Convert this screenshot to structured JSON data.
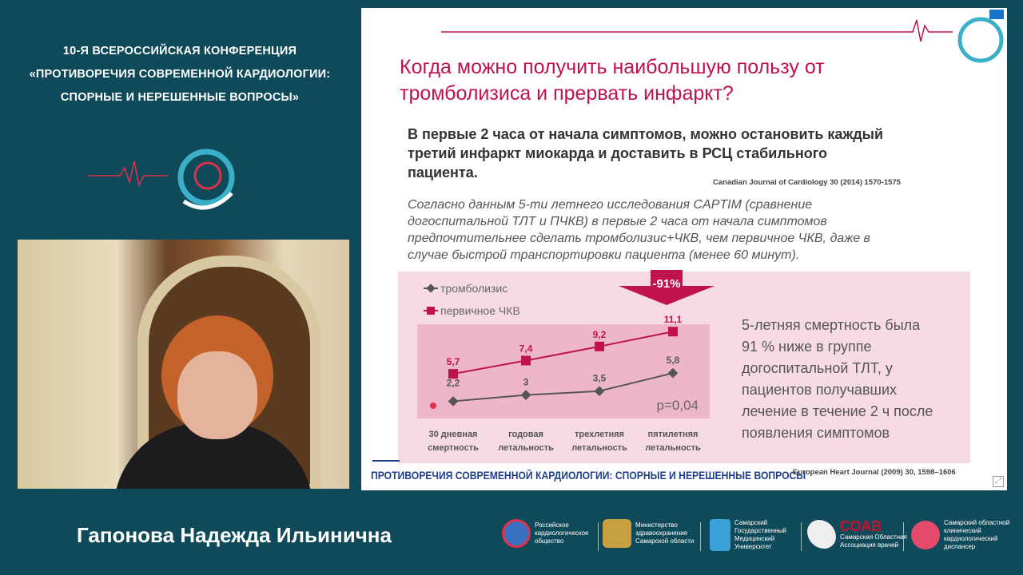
{
  "conference": {
    "line1": "10-Я ВСЕРОССИЙСКАЯ КОНФЕРЕНЦИЯ",
    "line2": "«ПРОТИВОРЕЧИЯ СОВРЕМЕННОЙ КАРДИОЛОГИИ:",
    "line3": "СПОРНЫЕ И НЕРЕШЕННЫЕ ВОПРОСЫ»"
  },
  "speaker": "Гапонова Надежда Ильинична",
  "slide": {
    "title1": "Когда можно получить наибольшую пользу от",
    "title2": "тромболизиса и прервать инфаркт?",
    "bold1": "В первые 2 часа от начала симптомов, можно остановить каждый",
    "bold2": "третий инфаркт миокарда и доставить в РСЦ стабильного",
    "bold3": "пациента.",
    "ref1": "Canadian Journal of Cardiology 30 (2014) 1570-1575",
    "ital1": "Согласно данным 5-ти летнего исследования CAPTIM  (сравнение",
    "ital2": "догоспитальной ТЛТ и ПЧКВ) в первые 2 часа от начала симптомов",
    "ital3": "предпочтительнее сделать тромболизис+ЧКВ, чем первичное ЧКВ, даже в",
    "ital4": "случае быстрой транспортировки пациента (менее 60 минут).",
    "arrow_label": "-91%",
    "p_value": "p=0,04",
    "note": [
      "5-летняя смертность была",
      "91 % ниже в группе",
      "догоспитальной ТЛТ, у",
      "пациентов получавших",
      "лечение в течение 2 ч после",
      "появления симптомов"
    ],
    "ref2": "European Heart Journal (2009) 30, 1598–1606",
    "footer": "ПРОТИВОРЕЧИЯ СОВРЕМЕННОЙ КАРДИОЛОГИИ: СПОРНЫЕ И НЕРЕШЕННЫЕ ВОПРОСЫ"
  },
  "chart_data": {
    "type": "line",
    "categories": [
      [
        "30 дневная",
        "смертность"
      ],
      [
        "годовая",
        "летальность"
      ],
      [
        "трехлетняя",
        "летальность"
      ],
      [
        "пятилетняя",
        "летальность"
      ]
    ],
    "series": [
      {
        "name": "тромболизис",
        "values": [
          2.2,
          3,
          3.5,
          5.8
        ],
        "labels": [
          "2,2",
          "3",
          "3,5",
          "5,8"
        ],
        "color": "#555555"
      },
      {
        "name": "первичное ЧКВ",
        "values": [
          5.7,
          7.4,
          9.2,
          11.1
        ],
        "labels": [
          "5,7",
          "7,4",
          "9,2",
          "11,1"
        ],
        "color": "#c0124f"
      }
    ],
    "ylim": [
      0,
      12
    ]
  },
  "logos": [
    {
      "text": [
        "Российское",
        "кардиологическое",
        "общество"
      ]
    },
    {
      "text": [
        "Министерство",
        "здравоохранения",
        "Самарской области"
      ]
    },
    {
      "text": [
        "Самарский",
        "Государственный",
        "Медицинский",
        "Университет"
      ]
    },
    {
      "title": "СОАВ",
      "text": [
        "Самарская Областная",
        "Ассоциация врачей"
      ]
    },
    {
      "text": [
        "Самарский областной",
        "клинический",
        "кардиологический",
        "диспансер"
      ]
    }
  ],
  "colors": {
    "bg": "#0f4a5a",
    "accent": "#c0124f"
  }
}
